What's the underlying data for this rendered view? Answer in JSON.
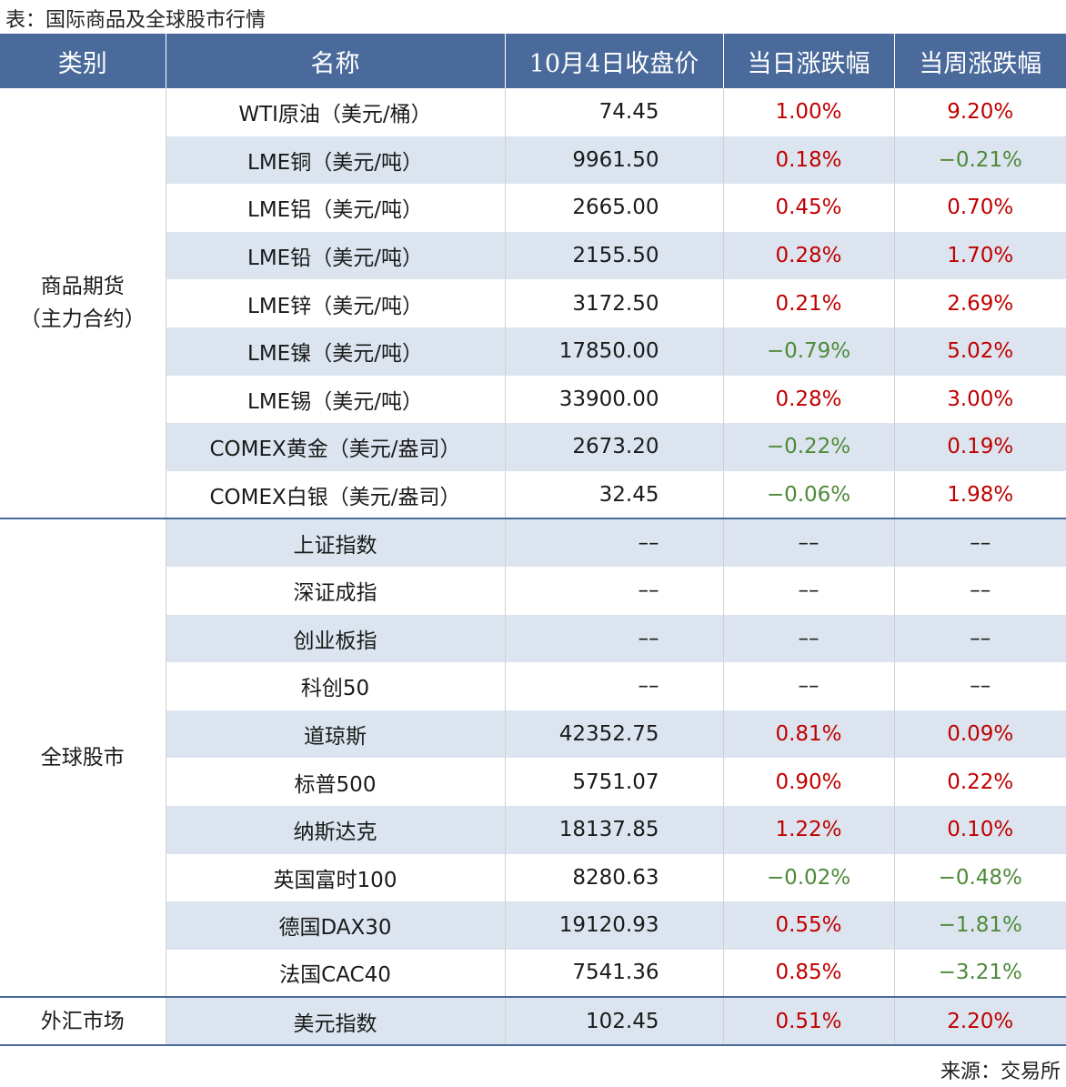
{
  "caption": "表：国际商品及全球股市行情",
  "source": "来源：交易所",
  "headers": [
    "类别",
    "名称",
    "10月4日收盘价",
    "当日涨跌幅",
    "当周涨跌幅"
  ],
  "colors": {
    "header_bg": "#4a6a9b",
    "row_alt": "#dce5ef",
    "up": "#c00000",
    "down": "#4e8a3a"
  },
  "groups": [
    {
      "category": "商品期货\n（主力合约）",
      "rows": [
        {
          "name": "WTI原油（美元/桶）",
          "close": "74.45",
          "day": "1.00%",
          "week": "9.20%"
        },
        {
          "name": "LME铜（美元/吨）",
          "close": "9961.50",
          "day": "0.18%",
          "week": "−0.21%"
        },
        {
          "name": "LME铝（美元/吨）",
          "close": "2665.00",
          "day": "0.45%",
          "week": "0.70%"
        },
        {
          "name": "LME铅（美元/吨）",
          "close": "2155.50",
          "day": "0.28%",
          "week": "1.70%"
        },
        {
          "name": "LME锌（美元/吨）",
          "close": "3172.50",
          "day": "0.21%",
          "week": "2.69%"
        },
        {
          "name": "LME镍（美元/吨）",
          "close": "17850.00",
          "day": "−0.79%",
          "week": "5.02%"
        },
        {
          "name": "LME锡（美元/吨）",
          "close": "33900.00",
          "day": "0.28%",
          "week": "3.00%"
        },
        {
          "name": "COMEX黄金（美元/盎司）",
          "close": "2673.20",
          "day": "−0.22%",
          "week": "0.19%"
        },
        {
          "name": "COMEX白银（美元/盎司）",
          "close": "32.45",
          "day": "−0.06%",
          "week": "1.98%"
        }
      ]
    },
    {
      "category": "全球股市",
      "rows": [
        {
          "name": "上证指数",
          "close": "––",
          "day": "––",
          "week": "––"
        },
        {
          "name": "深证成指",
          "close": "––",
          "day": "––",
          "week": "––"
        },
        {
          "name": "创业板指",
          "close": "––",
          "day": "––",
          "week": "––"
        },
        {
          "name": "科创50",
          "close": "––",
          "day": "––",
          "week": "––"
        },
        {
          "name": "道琼斯",
          "close": "42352.75",
          "day": "0.81%",
          "week": "0.09%"
        },
        {
          "name": "标普500",
          "close": "5751.07",
          "day": "0.90%",
          "week": "0.22%"
        },
        {
          "name": "纳斯达克",
          "close": "18137.85",
          "day": "1.22%",
          "week": "0.10%"
        },
        {
          "name": "英国富时100",
          "close": "8280.63",
          "day": "−0.02%",
          "week": "−0.48%"
        },
        {
          "name": "德国DAX30",
          "close": "19120.93",
          "day": "0.55%",
          "week": "−1.81%"
        },
        {
          "name": "法国CAC40",
          "close": "7541.36",
          "day": "0.85%",
          "week": "−3.21%"
        }
      ]
    },
    {
      "category": "外汇市场",
      "rows": [
        {
          "name": "美元指数",
          "close": "102.45",
          "day": "0.51%",
          "week": "2.20%"
        }
      ]
    }
  ]
}
